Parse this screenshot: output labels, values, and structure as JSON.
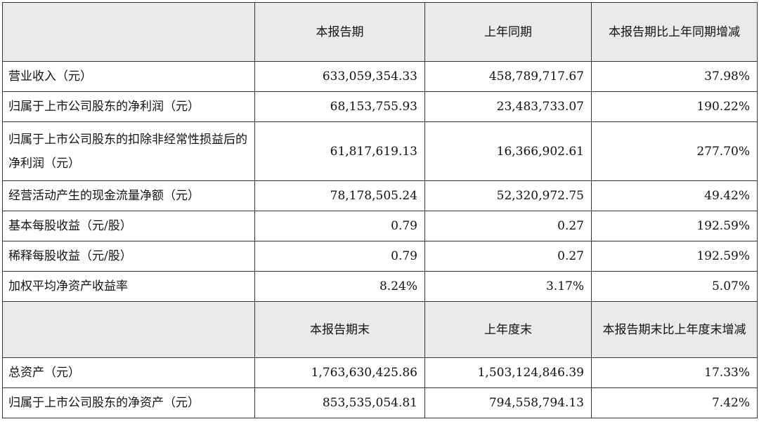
{
  "table": {
    "header1": [
      "本报告期",
      "上年同期",
      "本报告期比上年同期增减"
    ],
    "rows1": [
      {
        "label": "营业收入（元）",
        "current": "633,059,354.33",
        "prior": "458,789,717.67",
        "change": "37.98%"
      },
      {
        "label": "归属于上市公司股东的净利润（元）",
        "current": "68,153,755.93",
        "prior": "23,483,733.07",
        "change": "190.22%"
      },
      {
        "label": "归属于上市公司股东的扣除非经常性损益后的净利润（元）",
        "current": "61,817,619.13",
        "prior": "16,366,902.61",
        "change": "277.70%"
      },
      {
        "label": "经营活动产生的现金流量净额（元）",
        "current": "78,178,505.24",
        "prior": "52,320,972.75",
        "change": "49.42%"
      },
      {
        "label": "基本每股收益（元/股）",
        "current": "0.79",
        "prior": "0.27",
        "change": "192.59%"
      },
      {
        "label": "稀释每股收益（元/股）",
        "current": "0.79",
        "prior": "0.27",
        "change": "192.59%"
      },
      {
        "label": "加权平均净资产收益率",
        "current": "8.24%",
        "prior": "3.17%",
        "change": "5.07%"
      }
    ],
    "header2": [
      "本报告期末",
      "上年度末",
      "本报告期末比上年度末增减"
    ],
    "rows2": [
      {
        "label": "总资产（元）",
        "current": "1,763,630,425.86",
        "prior": "1,503,124,846.39",
        "change": "17.33%"
      },
      {
        "label": "归属于上市公司股东的净资产（元）",
        "current": "853,535,054.81",
        "prior": "794,558,794.13",
        "change": "7.42%"
      }
    ]
  }
}
